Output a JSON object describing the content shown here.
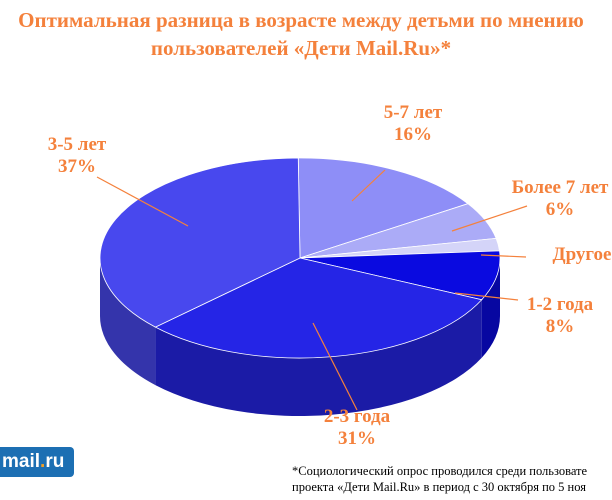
{
  "title_line1": "Оптимальная разница в возрасте между детьми по мнению",
  "title_line2": "пользователей «Дети Mail.Ru»*",
  "chart_data": {
    "type": "pie",
    "title": "Оптимальная разница в возрасте между детьми по мнению пользователей «Дети Mail.Ru»*",
    "slices": [
      {
        "label": "5-7 лет",
        "pct_text": "16%",
        "value": 16,
        "color": "#8e8ef7"
      },
      {
        "label": "Более 7 лет",
        "pct_text": "6%",
        "value": 6,
        "color": "#ababf7"
      },
      {
        "label": "Другое",
        "pct_text": "",
        "value": 2,
        "color": "#d4d4f8"
      },
      {
        "label": "1-2 года",
        "pct_text": "8%",
        "value": 8,
        "color": "#0a0ae0"
      },
      {
        "label": "2-3 года",
        "pct_text": "31%",
        "value": 31,
        "color": "#2525e6"
      },
      {
        "label": "3-5 лет",
        "pct_text": "37%",
        "value": 37,
        "color": "#4848ee"
      }
    ],
    "label_color": "#f4813c"
  },
  "logo": {
    "name": "mail",
    "dot": ".",
    "tld": "ru"
  },
  "footnote_line1": "*Социологический опрос проводился среди пользовате",
  "footnote_line2": "проекта «Дети Mail.Ru» в период с 30 октября по 5 ноя"
}
